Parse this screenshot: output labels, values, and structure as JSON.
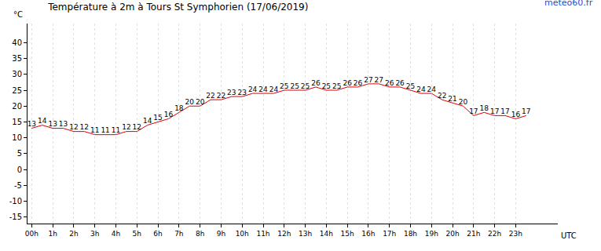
{
  "chart_data": {
    "type": "line",
    "title": "Température à 2m à Tours St Symphorien (17/06/2019)",
    "source": "meteo60.fr",
    "y_label": "°C",
    "x_label": "UTC",
    "x": [
      0,
      0.5,
      1,
      1.5,
      2,
      2.5,
      3,
      3.5,
      4,
      4.5,
      5,
      5.5,
      6,
      6.5,
      7,
      7.5,
      8,
      8.5,
      9,
      9.5,
      10,
      10.5,
      11,
      11.5,
      12,
      12.5,
      13,
      13.5,
      14,
      14.5,
      15,
      15.5,
      16,
      16.5,
      17,
      17.5,
      18,
      18.5,
      19,
      19.5,
      20,
      20.5,
      21,
      21.5,
      22,
      22.5,
      23,
      23.5
    ],
    "values": [
      13,
      14,
      13,
      13,
      12,
      12,
      11,
      11,
      11,
      12,
      12,
      14,
      15,
      16,
      18,
      20,
      20,
      22,
      22,
      23,
      23,
      24,
      24,
      24,
      25,
      25,
      25,
      26,
      25,
      25,
      26,
      26,
      27,
      27,
      26,
      26,
      25,
      24,
      24,
      22,
      21,
      20,
      17,
      18,
      17,
      17,
      16,
      17
    ],
    "color": "#dd0000",
    "data_labels": true,
    "grid": true,
    "xlim": [
      -0.2,
      25
    ],
    "xticks": [
      {
        "value": 0,
        "label": "00h"
      },
      {
        "value": 1,
        "label": "1h"
      },
      {
        "value": 2,
        "label": "2h"
      },
      {
        "value": 3,
        "label": "3h"
      },
      {
        "value": 4,
        "label": "4h"
      },
      {
        "value": 5,
        "label": "5h"
      },
      {
        "value": 6,
        "label": "6h"
      },
      {
        "value": 7,
        "label": "7h"
      },
      {
        "value": 8,
        "label": "8h"
      },
      {
        "value": 9,
        "label": "9h"
      },
      {
        "value": 10,
        "label": "10h"
      },
      {
        "value": 11,
        "label": "11h"
      },
      {
        "value": 12,
        "label": "12h"
      },
      {
        "value": 13,
        "label": "13h"
      },
      {
        "value": 14,
        "label": "14h"
      },
      {
        "value": 15,
        "label": "15h"
      },
      {
        "value": 16,
        "label": "16h"
      },
      {
        "value": 17,
        "label": "17h"
      },
      {
        "value": 18,
        "label": "18h"
      },
      {
        "value": 19,
        "label": "19h"
      },
      {
        "value": 20,
        "label": "20h"
      },
      {
        "value": 21,
        "label": "21h"
      },
      {
        "value": 22,
        "label": "22h"
      },
      {
        "value": 23,
        "label": "23h"
      }
    ],
    "ylim": [
      -17,
      46
    ],
    "yticks": [
      -15,
      -10,
      -5,
      0,
      5,
      10,
      15,
      20,
      25,
      30,
      35,
      40
    ]
  }
}
